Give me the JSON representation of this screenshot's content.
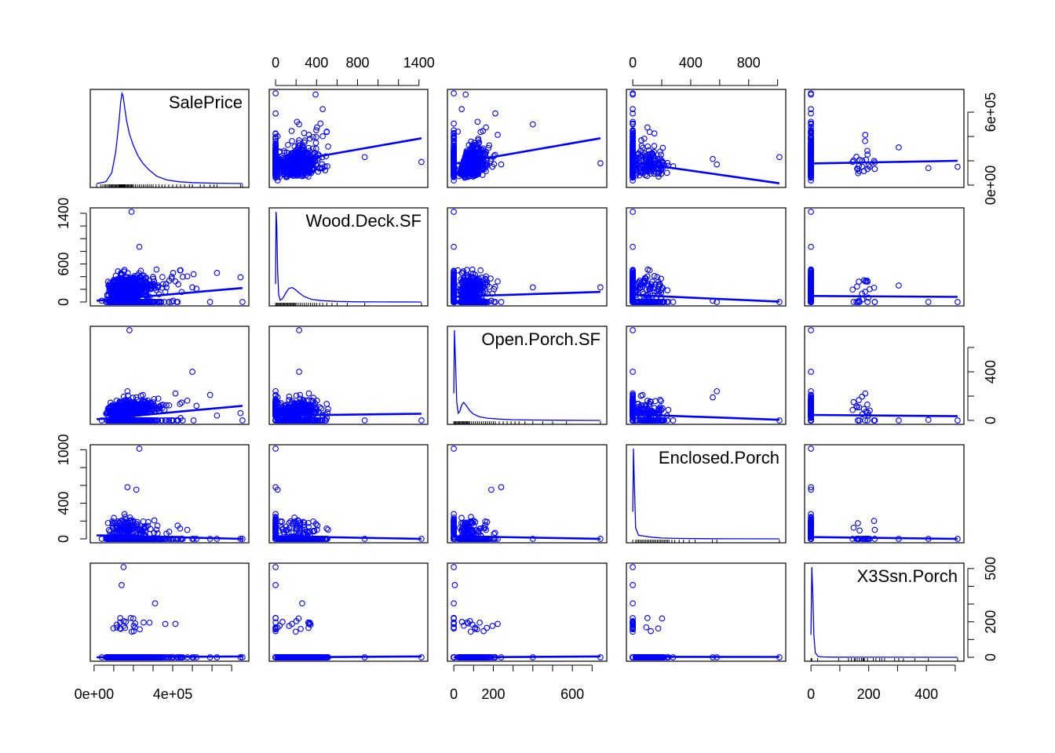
{
  "chart_data": {
    "type": "scatter",
    "variables": [
      "SalePrice",
      "Wood.Deck.SF",
      "Open.Porch.SF",
      "Enclosed.Porch",
      "X3Ssn.Porch"
    ],
    "diagonal": "density",
    "off_diagonal": "scatter with linear fit line",
    "grid": false,
    "colors": {
      "points": "#0000FF",
      "fit_line": "#0000FF",
      "density": "#0000FF",
      "rug": "#000000",
      "frame": "#000000"
    },
    "ranges": {
      "SalePrice": [
        12789,
        755000
      ],
      "Wood.Deck.SF": [
        0,
        1424
      ],
      "Open.Porch.SF": [
        0,
        742
      ],
      "Enclosed.Porch": [
        0,
        1012
      ],
      "X3Ssn.Porch": [
        0,
        508
      ]
    },
    "axes": {
      "top": [
        {
          "column": 1,
          "ticks": [
            "0",
            "400",
            "800",
            "1400"
          ],
          "minor_ticks": [
            0,
            200,
            400,
            600,
            800,
            1000,
            1200,
            1400
          ]
        },
        {
          "column": 3,
          "ticks": [
            "0",
            "400",
            "800"
          ],
          "minor_ticks": [
            0,
            200,
            400,
            600,
            800,
            1000
          ]
        }
      ],
      "bottom": [
        {
          "column": 0,
          "ticks": [
            "0e+00",
            "4e+05"
          ],
          "minor_ticks": [
            0,
            100000,
            200000,
            300000,
            400000,
            500000,
            600000,
            700000
          ]
        },
        {
          "column": 2,
          "ticks": [
            "0",
            "200",
            "600"
          ],
          "minor_ticks": [
            0,
            100,
            200,
            300,
            400,
            500,
            600,
            700
          ]
        },
        {
          "column": 4,
          "ticks": [
            "0",
            "200",
            "400"
          ],
          "minor_ticks": [
            0,
            100,
            200,
            300,
            400,
            500
          ]
        }
      ],
      "left": [
        {
          "row": 1,
          "ticks": [
            "0",
            "600",
            "1400"
          ],
          "minor_ticks": [
            0,
            200,
            400,
            600,
            800,
            1000,
            1200,
            1400
          ]
        },
        {
          "row": 3,
          "ticks": [
            "0",
            "400",
            "1000"
          ],
          "minor_ticks": [
            0,
            200,
            400,
            600,
            800,
            1000
          ]
        }
      ],
      "right": [
        {
          "row": 0,
          "ticks": [
            "0e+00",
            "6e+05"
          ],
          "minor_ticks": [
            0,
            200000,
            400000,
            600000
          ]
        },
        {
          "row": 2,
          "ticks": [
            "0",
            "400"
          ],
          "minor_ticks": [
            0,
            200,
            400,
            600
          ]
        },
        {
          "row": 4,
          "ticks": [
            "0",
            "200",
            "500"
          ],
          "minor_ticks": [
            0,
            100,
            200,
            300,
            400,
            500
          ]
        }
      ]
    },
    "fit_lines": [
      {
        "x": "Wood.Deck.SF",
        "y": "SalePrice",
        "from": [
          0,
          175000
        ],
        "to": [
          1424,
          385000
        ]
      },
      {
        "x": "Open.Porch.SF",
        "y": "SalePrice",
        "from": [
          0,
          175000
        ],
        "to": [
          742,
          385000
        ]
      },
      {
        "x": "Enclosed.Porch",
        "y": "SalePrice",
        "from": [
          0,
          187000
        ],
        "to": [
          1012,
          15000
        ]
      },
      {
        "x": "X3Ssn.Porch",
        "y": "SalePrice",
        "from": [
          0,
          178000
        ],
        "to": [
          508,
          200000
        ]
      },
      {
        "x": "SalePrice",
        "y": "Wood.Deck.SF",
        "from": [
          12789,
          20
        ],
        "to": [
          755000,
          220
        ]
      },
      {
        "x": "Open.Porch.SF",
        "y": "Wood.Deck.SF",
        "from": [
          0,
          85
        ],
        "to": [
          742,
          160
        ]
      },
      {
        "x": "Enclosed.Porch",
        "y": "Wood.Deck.SF",
        "from": [
          0,
          110
        ],
        "to": [
          1012,
          5
        ]
      },
      {
        "x": "X3Ssn.Porch",
        "y": "Wood.Deck.SF",
        "from": [
          0,
          95
        ],
        "to": [
          508,
          80
        ]
      },
      {
        "x": "SalePrice",
        "y": "Open.Porch.SF",
        "from": [
          12789,
          10
        ],
        "to": [
          755000,
          120
        ]
      },
      {
        "x": "Wood.Deck.SF",
        "y": "Open.Porch.SF",
        "from": [
          0,
          40
        ],
        "to": [
          1424,
          55
        ]
      },
      {
        "x": "Enclosed.Porch",
        "y": "Open.Porch.SF",
        "from": [
          0,
          50
        ],
        "to": [
          1012,
          5
        ]
      },
      {
        "x": "X3Ssn.Porch",
        "y": "Open.Porch.SF",
        "from": [
          0,
          45
        ],
        "to": [
          508,
          35
        ]
      },
      {
        "x": "SalePrice",
        "y": "Enclosed.Porch",
        "from": [
          12789,
          40
        ],
        "to": [
          755000,
          0
        ]
      },
      {
        "x": "Wood.Deck.SF",
        "y": "Enclosed.Porch",
        "from": [
          0,
          30
        ],
        "to": [
          1424,
          0
        ]
      },
      {
        "x": "Open.Porch.SF",
        "y": "Enclosed.Porch",
        "from": [
          0,
          30
        ],
        "to": [
          742,
          0
        ]
      },
      {
        "x": "X3Ssn.Porch",
        "y": "Enclosed.Porch",
        "from": [
          0,
          20
        ],
        "to": [
          508,
          0
        ]
      },
      {
        "x": "SalePrice",
        "y": "X3Ssn.Porch",
        "from": [
          12789,
          0
        ],
        "to": [
          755000,
          5
        ]
      },
      {
        "x": "Wood.Deck.SF",
        "y": "X3Ssn.Porch",
        "from": [
          0,
          0
        ],
        "to": [
          1424,
          5
        ]
      },
      {
        "x": "Open.Porch.SF",
        "y": "X3Ssn.Porch",
        "from": [
          0,
          0
        ],
        "to": [
          742,
          5
        ]
      },
      {
        "x": "Enclosed.Porch",
        "y": "X3Ssn.Porch",
        "from": [
          0,
          3
        ],
        "to": [
          1012,
          2
        ]
      }
    ],
    "densities": {
      "SalePrice": {
        "x": [
          12789,
          60000,
          90000,
          110000,
          125000,
          135000,
          142000,
          148000,
          155000,
          165000,
          180000,
          200000,
          225000,
          250000,
          280000,
          320000,
          370000,
          430000,
          500000,
          600000,
          755000
        ],
        "y": [
          0,
          0.02,
          0.12,
          0.35,
          0.65,
          0.9,
          1.0,
          0.97,
          0.85,
          0.7,
          0.55,
          0.42,
          0.3,
          0.22,
          0.15,
          0.08,
          0.04,
          0.02,
          0.01,
          0.004,
          0
        ]
      },
      "Wood.Deck.SF": {
        "x": [
          0,
          5,
          12,
          20,
          30,
          45,
          70,
          100,
          130,
          160,
          190,
          230,
          280,
          350,
          450,
          600,
          800,
          1000,
          1424
        ],
        "y": [
          0.2,
          1.0,
          0.85,
          0.35,
          0.08,
          0.02,
          0.04,
          0.1,
          0.15,
          0.16,
          0.14,
          0.1,
          0.06,
          0.03,
          0.015,
          0.006,
          0.002,
          0.001,
          0
        ]
      },
      "Open.Porch.SF": {
        "x": [
          0,
          3,
          8,
          15,
          22,
          30,
          40,
          50,
          65,
          80,
          100,
          130,
          170,
          230,
          300,
          400,
          550,
          742
        ],
        "y": [
          0.3,
          1.0,
          0.7,
          0.2,
          0.08,
          0.1,
          0.17,
          0.2,
          0.16,
          0.11,
          0.07,
          0.04,
          0.025,
          0.015,
          0.008,
          0.004,
          0.002,
          0
        ]
      },
      "Enclosed.Porch": {
        "x": [
          0,
          5,
          10,
          20,
          40,
          80,
          120,
          200,
          300,
          500,
          700,
          1012
        ],
        "y": [
          0.3,
          1.0,
          0.65,
          0.12,
          0.04,
          0.03,
          0.02,
          0.01,
          0.005,
          0.002,
          0.001,
          0
        ]
      },
      "X3Ssn.Porch": {
        "x": [
          0,
          3,
          6,
          10,
          15,
          25,
          40,
          80,
          150,
          300,
          508
        ],
        "y": [
          0.25,
          1.0,
          0.75,
          0.25,
          0.05,
          0.01,
          0.004,
          0.002,
          0.001,
          0.0005,
          0
        ]
      }
    },
    "rugs": {
      "SalePrice": [
        13000,
        35000,
        45000,
        55000,
        60000,
        68000,
        75000,
        80000,
        85000,
        90000,
        95000,
        100000,
        105000,
        110000,
        115000,
        120000,
        125000,
        128000,
        130000,
        133000,
        135000,
        138000,
        140000,
        143000,
        145000,
        148000,
        150000,
        153000,
        155000,
        158000,
        160000,
        165000,
        170000,
        175000,
        180000,
        185000,
        190000,
        195000,
        200000,
        210000,
        220000,
        230000,
        240000,
        250000,
        260000,
        270000,
        280000,
        290000,
        300000,
        315000,
        330000,
        345000,
        360000,
        380000,
        400000,
        420000,
        440000,
        460000,
        485000,
        500000,
        540000,
        560000,
        590000,
        610000,
        625000,
        745000,
        755000
      ],
      "Wood.Deck.SF": [
        0,
        10,
        20,
        30,
        40,
        50,
        60,
        70,
        80,
        90,
        100,
        110,
        120,
        130,
        140,
        150,
        160,
        170,
        180,
        190,
        200,
        220,
        240,
        260,
        280,
        300,
        320,
        340,
        360,
        380,
        400,
        430,
        460,
        500,
        550,
        600,
        700,
        870,
        1424
      ],
      "Open.Porch.SF": [
        0,
        5,
        10,
        15,
        20,
        25,
        30,
        35,
        40,
        45,
        50,
        55,
        60,
        65,
        70,
        75,
        80,
        90,
        100,
        110,
        120,
        130,
        140,
        150,
        160,
        170,
        180,
        190,
        200,
        210,
        230,
        250,
        270,
        290,
        310,
        330,
        360,
        400,
        450,
        500,
        570,
        742
      ],
      "Enclosed.Porch": [
        0,
        20,
        30,
        40,
        50,
        60,
        70,
        80,
        90,
        100,
        110,
        120,
        130,
        140,
        150,
        160,
        170,
        180,
        190,
        200,
        210,
        220,
        230,
        240,
        250,
        270,
        290,
        320,
        350,
        390,
        430,
        550,
        580,
        1012
      ],
      "X3Ssn.Porch": [
        0,
        3,
        23,
        96,
        130,
        140,
        150,
        153,
        160,
        168,
        175,
        180,
        182,
        185,
        196,
        216,
        225,
        238,
        245,
        255,
        290,
        304,
        320,
        360,
        407,
        508
      ]
    },
    "labels": [
      "SalePrice",
      "Wood.Deck.SF",
      "Open.Porch.SF",
      "Enclosed.Porch",
      "X3Ssn.Porch"
    ]
  }
}
